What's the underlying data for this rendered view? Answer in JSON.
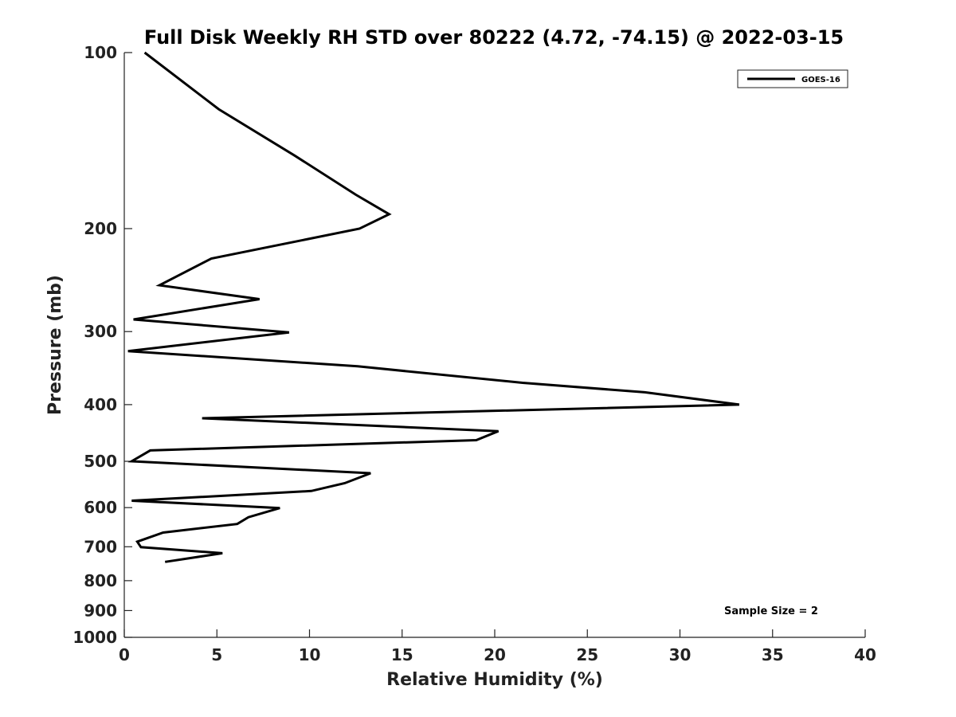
{
  "chart_data": {
    "type": "line",
    "title": "Full Disk Weekly RH STD over 80222 (4.72, -74.15) @ 2022-03-15",
    "xlabel": "Relative Humidity (%)",
    "ylabel": "Pressure (mb)",
    "xlim": [
      0,
      40
    ],
    "ylim": [
      100,
      1000
    ],
    "yscale": "log",
    "y_reversed": true,
    "x_ticks": [
      0,
      5,
      10,
      15,
      20,
      25,
      30,
      35,
      40
    ],
    "x_tick_labels": [
      "0",
      "5",
      "10",
      "15",
      "20",
      "25",
      "30",
      "35",
      "40"
    ],
    "y_ticks": [
      100,
      200,
      300,
      400,
      500,
      600,
      700,
      800,
      900,
      1000
    ],
    "y_tick_labels": [
      "100",
      "200",
      "300",
      "400",
      "500",
      "600",
      "700",
      "800",
      "900",
      "1000"
    ],
    "grid": false,
    "legend_position": "top-right",
    "annotation": "Sample Size = 2",
    "series": [
      {
        "name": "GOES-16",
        "color": "#000000",
        "points": [
          {
            "x": 1.1,
            "y": 100
          },
          {
            "x": 5.1,
            "y": 125
          },
          {
            "x": 9.2,
            "y": 150
          },
          {
            "x": 12.5,
            "y": 175
          },
          {
            "x": 14.3,
            "y": 189
          },
          {
            "x": 12.7,
            "y": 200
          },
          {
            "x": 4.7,
            "y": 225
          },
          {
            "x": 1.9,
            "y": 250
          },
          {
            "x": 7.3,
            "y": 264
          },
          {
            "x": 0.5,
            "y": 286
          },
          {
            "x": 8.9,
            "y": 301
          },
          {
            "x": 0.2,
            "y": 324
          },
          {
            "x": 12.6,
            "y": 344
          },
          {
            "x": 21.5,
            "y": 367
          },
          {
            "x": 28.1,
            "y": 381
          },
          {
            "x": 33.2,
            "y": 400
          },
          {
            "x": 4.2,
            "y": 422
          },
          {
            "x": 20.2,
            "y": 444
          },
          {
            "x": 19.0,
            "y": 460
          },
          {
            "x": 1.4,
            "y": 479
          },
          {
            "x": 0.4,
            "y": 500
          },
          {
            "x": 13.3,
            "y": 524
          },
          {
            "x": 11.9,
            "y": 545
          },
          {
            "x": 10.1,
            "y": 562
          },
          {
            "x": 0.4,
            "y": 584
          },
          {
            "x": 8.4,
            "y": 601
          },
          {
            "x": 6.7,
            "y": 623
          },
          {
            "x": 6.1,
            "y": 640
          },
          {
            "x": 2.1,
            "y": 662
          },
          {
            "x": 0.7,
            "y": 686
          },
          {
            "x": 0.9,
            "y": 701
          },
          {
            "x": 5.3,
            "y": 718
          },
          {
            "x": 2.2,
            "y": 743
          }
        ]
      }
    ]
  }
}
